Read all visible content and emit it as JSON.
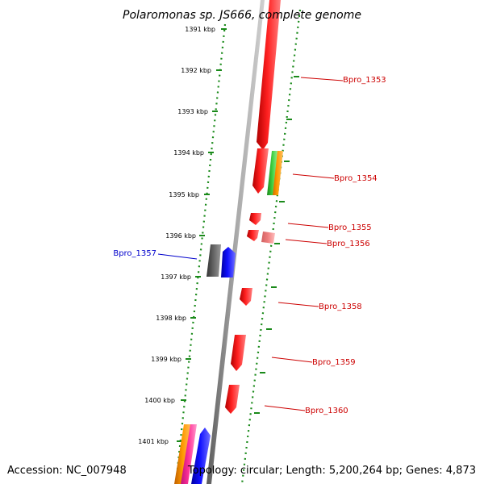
{
  "title": "Polaromonas sp. JS666, complete genome",
  "footer": {
    "accession": "Accession: NC_007948",
    "summary": "Topology: circular; Length: 5,200,264 bp; Genes: 4,873"
  },
  "colors": {
    "ruler": "#1a8a1a",
    "backbone": "#8c8c8c",
    "forward_label": "#cc0000",
    "reverse_label": "#0000cc",
    "red_gene": "#ff0000",
    "blue_gene": "#0000ff",
    "gray_gene": "#555555",
    "orange_gene": "#ff8c00",
    "green_gene": "#33cc33",
    "magenta_gene": "#ff33aa",
    "pink_gene": "#f08080"
  },
  "ticks": [
    "1391 kbp",
    "1392 kbp",
    "1393 kbp",
    "1394 kbp",
    "1395 kbp",
    "1396 kbp",
    "1397 kbp",
    "1398 kbp",
    "1399 kbp",
    "1400 kbp",
    "1401 kbp"
  ],
  "gene_labels": [
    {
      "text": "Bpro_1353",
      "side": "right"
    },
    {
      "text": "Bpro_1354",
      "side": "right"
    },
    {
      "text": "Bpro_1355",
      "side": "right"
    },
    {
      "text": "Bpro_1356",
      "side": "right"
    },
    {
      "text": "Bpro_1357",
      "side": "left"
    },
    {
      "text": "Bpro_1358",
      "side": "right"
    },
    {
      "text": "Bpro_1359",
      "side": "right"
    },
    {
      "text": "Bpro_1360",
      "side": "right"
    }
  ]
}
